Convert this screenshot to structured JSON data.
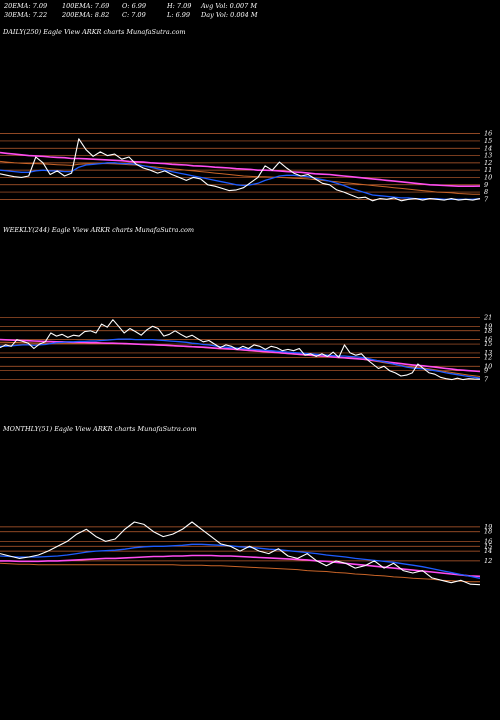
{
  "header": {
    "row1": [
      "20EMA: 7.09",
      "100EMA: 7.69",
      "O: 6.99",
      "H: 7.09",
      "Avg Vol: 0.007 M"
    ],
    "row2": [
      "30EMA: 7.22",
      "200EMA: 8.82",
      "C: 7.09",
      "L: 6.99",
      "Day Vol: 0.004 M"
    ]
  },
  "colors": {
    "price": "#ffffff",
    "ema_short": "#1e5cff",
    "ema_mid": "#ff4df0",
    "ema_long": "#c86428",
    "grid": "#c06030"
  },
  "chart_data": [
    {
      "type": "line",
      "title": "DAILY(250) Eagle   View  ARKR charts MunafaSutra.com",
      "y_ticks": [
        16,
        15,
        14,
        13,
        12,
        11,
        10,
        9,
        8,
        7
      ],
      "ylim": [
        6.5,
        16.5
      ],
      "series": [
        {
          "name": "price",
          "values": [
            10.5,
            10.3,
            10.1,
            10.0,
            10.2,
            12.8,
            12.0,
            10.4,
            10.9,
            10.2,
            10.6,
            15.3,
            13.8,
            12.9,
            13.5,
            13.0,
            13.2,
            12.5,
            12.8,
            11.8,
            11.3,
            11.0,
            10.6,
            10.9,
            10.4,
            10.0,
            9.6,
            10.0,
            9.8,
            9.0,
            8.8,
            8.5,
            8.2,
            8.3,
            8.6,
            9.3,
            10.0,
            11.6,
            11.0,
            12.1,
            11.3,
            10.6,
            10.2,
            10.4,
            9.8,
            9.2,
            9.0,
            8.3,
            8.0,
            7.6,
            7.2,
            7.3,
            6.8,
            7.1,
            7.0,
            7.2,
            6.8,
            7.0,
            7.1,
            6.9,
            7.1,
            7.0,
            6.9,
            7.1,
            6.9,
            7.0,
            6.9,
            7.1
          ]
        },
        {
          "name": "ema_short",
          "values": [
            11.0,
            10.9,
            10.8,
            10.7,
            10.7,
            10.9,
            11.0,
            10.9,
            10.9,
            10.8,
            10.8,
            11.4,
            11.7,
            11.8,
            11.9,
            12.0,
            12.0,
            11.9,
            11.9,
            11.8,
            11.6,
            11.4,
            11.2,
            11.0,
            10.8,
            10.6,
            10.4,
            10.2,
            10.0,
            9.8,
            9.6,
            9.4,
            9.2,
            9.0,
            8.9,
            9.0,
            9.2,
            9.6,
            9.9,
            10.2,
            10.3,
            10.3,
            10.2,
            10.1,
            9.9,
            9.7,
            9.5,
            9.2,
            8.9,
            8.5,
            8.2,
            7.9,
            7.6,
            7.5,
            7.4,
            7.3,
            7.2,
            7.2,
            7.1,
            7.1,
            7.1,
            7.1,
            7.0,
            7.0,
            7.0,
            7.0,
            7.0,
            7.09
          ]
        },
        {
          "name": "ema_mid",
          "values": [
            13.4,
            13.3,
            13.2,
            13.1,
            13.0,
            12.95,
            12.9,
            12.8,
            12.75,
            12.7,
            12.6,
            12.6,
            12.55,
            12.5,
            12.45,
            12.4,
            12.35,
            12.3,
            12.2,
            12.15,
            12.1,
            12.0,
            11.95,
            11.9,
            11.8,
            11.75,
            11.7,
            11.6,
            11.55,
            11.5,
            11.4,
            11.35,
            11.3,
            11.2,
            11.15,
            11.1,
            11.0,
            11.0,
            10.95,
            10.9,
            10.8,
            10.75,
            10.7,
            10.6,
            10.5,
            10.45,
            10.4,
            10.3,
            10.2,
            10.1,
            10.0,
            9.9,
            9.8,
            9.7,
            9.6,
            9.5,
            9.4,
            9.3,
            9.2,
            9.1,
            9.0,
            8.95,
            8.9,
            8.85,
            8.8,
            8.8,
            8.8,
            8.82
          ]
        },
        {
          "name": "ema_long",
          "values": [
            12.2,
            12.1,
            12.0,
            11.95,
            11.9,
            11.9,
            11.85,
            11.8,
            11.75,
            11.7,
            11.65,
            11.8,
            11.85,
            11.9,
            11.9,
            11.9,
            11.85,
            11.8,
            11.75,
            11.7,
            11.6,
            11.5,
            11.4,
            11.3,
            11.2,
            11.1,
            11.0,
            10.9,
            10.8,
            10.7,
            10.6,
            10.5,
            10.4,
            10.3,
            10.2,
            10.15,
            10.1,
            10.1,
            10.05,
            10.0,
            9.95,
            9.9,
            9.85,
            9.8,
            9.7,
            9.6,
            9.5,
            9.4,
            9.3,
            9.2,
            9.1,
            9.0,
            8.9,
            8.8,
            8.7,
            8.6,
            8.5,
            8.4,
            8.3,
            8.2,
            8.1,
            8.0,
            7.95,
            7.9,
            7.8,
            7.75,
            7.7,
            7.69
          ]
        }
      ]
    },
    {
      "type": "line",
      "title": "WEEKLY(244) Eagle   View  ARKR charts MunafaSutra.com",
      "y_ticks": [
        21,
        19,
        18,
        16,
        15,
        13,
        12,
        10,
        9,
        7
      ],
      "ylim": [
        6,
        22
      ],
      "series": [
        {
          "name": "price",
          "values": [
            14.2,
            14.8,
            14.5,
            16.0,
            15.6,
            15.2,
            14.0,
            15.0,
            15.5,
            17.5,
            16.8,
            17.2,
            16.5,
            17.0,
            16.8,
            17.8,
            18.0,
            17.5,
            19.5,
            18.8,
            20.5,
            19.0,
            17.5,
            18.5,
            17.8,
            17.0,
            18.2,
            19.0,
            18.5,
            16.8,
            17.2,
            18.0,
            17.2,
            16.5,
            17.0,
            16.2,
            15.5,
            15.8,
            15.0,
            14.2,
            14.8,
            14.5,
            13.8,
            14.5,
            14.0,
            14.8,
            14.5,
            13.8,
            14.5,
            14.2,
            13.5,
            13.8,
            13.5,
            14.0,
            12.5,
            12.8,
            12.2,
            12.8,
            12.2,
            13.2,
            12.0,
            14.8,
            13.0,
            12.5,
            12.8,
            11.5,
            10.5,
            9.5,
            10.0,
            9.0,
            8.5,
            7.8,
            8.0,
            8.5,
            10.5,
            9.5,
            8.5,
            8.2,
            7.5,
            7.2,
            7.0,
            7.3,
            7.0,
            7.2,
            7.1,
            7.09
          ]
        },
        {
          "name": "ema_short",
          "values": [
            14.5,
            14.5,
            14.6,
            14.7,
            14.8,
            14.8,
            14.7,
            14.8,
            14.9,
            15.1,
            15.3,
            15.4,
            15.5,
            15.5,
            15.6,
            15.6,
            15.7,
            15.7,
            15.8,
            15.9,
            16.0,
            16.1,
            16.1,
            16.1,
            16.0,
            16.0,
            16.0,
            16.0,
            15.9,
            15.8,
            15.7,
            15.6,
            15.5,
            15.4,
            15.2,
            15.1,
            14.9,
            14.8,
            14.6,
            14.4,
            14.3,
            14.2,
            14.1,
            14.0,
            13.9,
            13.8,
            13.7,
            13.6,
            13.5,
            13.4,
            13.3,
            13.2,
            13.1,
            13.0,
            12.9,
            12.8,
            12.7,
            12.6,
            12.5,
            12.4,
            12.3,
            12.3,
            12.2,
            12.1,
            12.0,
            11.8,
            11.5,
            11.2,
            11.0,
            10.7,
            10.4,
            10.1,
            9.8,
            9.6,
            9.5,
            9.4,
            9.2,
            9.0,
            8.8,
            8.5,
            8.3,
            8.1,
            7.9,
            7.7,
            7.5,
            7.3
          ]
        },
        {
          "name": "ema_mid",
          "values": [
            16.0,
            15.95,
            15.9,
            15.85,
            15.8,
            15.75,
            15.7,
            15.65,
            15.6,
            15.55,
            15.5,
            15.5,
            15.45,
            15.4,
            15.4,
            15.35,
            15.3,
            15.3,
            15.25,
            15.2,
            15.2,
            15.15,
            15.1,
            15.05,
            15.0,
            14.95,
            14.9,
            14.85,
            14.8,
            14.75,
            14.7,
            14.6,
            14.55,
            14.5,
            14.4,
            14.35,
            14.3,
            14.2,
            14.1,
            14.0,
            13.95,
            13.9,
            13.8,
            13.7,
            13.6,
            13.5,
            13.4,
            13.3,
            13.2,
            13.1,
            13.0,
            12.9,
            12.8,
            12.7,
            12.6,
            12.5,
            12.4,
            12.3,
            12.2,
            12.1,
            12.0,
            11.9,
            11.8,
            11.7,
            11.6,
            11.5,
            11.35,
            11.2,
            11.05,
            10.9,
            10.75,
            10.6,
            10.45,
            10.3,
            10.2,
            10.1,
            9.95,
            9.8,
            9.65,
            9.5,
            9.35,
            9.2,
            9.1,
            9.0,
            8.9,
            8.82
          ]
        },
        {
          "name": "ema_long",
          "values": [
            15.4,
            15.4,
            15.35,
            15.35,
            15.3,
            15.3,
            15.25,
            15.25,
            15.2,
            15.2,
            15.2,
            15.2,
            15.2,
            15.15,
            15.15,
            15.15,
            15.1,
            15.1,
            15.1,
            15.1,
            15.1,
            15.05,
            15.0,
            15.0,
            14.95,
            14.9,
            14.85,
            14.8,
            14.75,
            14.7,
            14.6,
            14.55,
            14.5,
            14.4,
            14.35,
            14.3,
            14.2,
            14.1,
            14.0,
            13.9,
            13.85,
            13.8,
            13.7,
            13.6,
            13.5,
            13.4,
            13.3,
            13.2,
            13.1,
            13.0,
            12.9,
            12.8,
            12.7,
            12.6,
            12.5,
            12.4,
            12.3,
            12.2,
            12.1,
            12.0,
            11.9,
            11.85,
            11.8,
            11.7,
            11.6,
            11.4,
            11.2,
            11.0,
            10.8,
            10.6,
            10.4,
            10.2,
            10.0,
            9.8,
            9.7,
            9.6,
            9.4,
            9.2,
            9.0,
            8.8,
            8.6,
            8.4,
            8.2,
            8.0,
            7.85,
            7.69
          ]
        }
      ]
    },
    {
      "type": "line",
      "title": "MONTHLY(51) Eagle   View  ARKR charts MunafaSutra.com",
      "y_ticks": [
        19,
        18,
        16,
        15,
        14,
        12
      ],
      "ylim": [
        6,
        20
      ],
      "series": [
        {
          "name": "price",
          "values": [
            13.5,
            13.0,
            12.5,
            12.8,
            13.2,
            14.0,
            15.0,
            16.0,
            17.5,
            18.5,
            17.0,
            16.0,
            16.5,
            18.5,
            20.0,
            19.5,
            18.0,
            17.0,
            17.5,
            18.5,
            20.0,
            18.5,
            17.0,
            15.5,
            15.0,
            14.0,
            15.0,
            14.0,
            13.5,
            14.5,
            13.0,
            12.5,
            13.5,
            12.0,
            11.0,
            12.0,
            11.5,
            10.5,
            11.0,
            12.0,
            10.5,
            11.5,
            10.0,
            9.5,
            10.0,
            8.5,
            8.0,
            7.5,
            8.0,
            7.2,
            7.09
          ]
        },
        {
          "name": "ema_short",
          "values": [
            13.0,
            12.9,
            12.8,
            12.8,
            12.8,
            12.9,
            13.0,
            13.2,
            13.5,
            13.8,
            14.0,
            14.1,
            14.2,
            14.4,
            14.7,
            14.9,
            15.0,
            15.0,
            15.1,
            15.2,
            15.4,
            15.4,
            15.3,
            15.2,
            15.1,
            14.9,
            14.8,
            14.6,
            14.4,
            14.3,
            14.1,
            13.9,
            13.7,
            13.5,
            13.2,
            13.0,
            12.8,
            12.5,
            12.3,
            12.1,
            11.9,
            11.7,
            11.4,
            11.1,
            10.8,
            10.4,
            10.0,
            9.6,
            9.2,
            8.8,
            8.4
          ]
        },
        {
          "name": "ema_mid",
          "values": [
            12.0,
            12.0,
            11.9,
            11.9,
            11.9,
            12.0,
            12.0,
            12.1,
            12.2,
            12.3,
            12.4,
            12.5,
            12.5,
            12.6,
            12.7,
            12.8,
            12.9,
            12.9,
            13.0,
            13.0,
            13.1,
            13.1,
            13.1,
            13.0,
            13.0,
            12.9,
            12.8,
            12.7,
            12.6,
            12.5,
            12.4,
            12.3,
            12.2,
            12.0,
            11.9,
            11.7,
            11.5,
            11.3,
            11.1,
            10.9,
            10.7,
            10.5,
            10.3,
            10.1,
            9.9,
            9.7,
            9.5,
            9.3,
            9.1,
            8.9,
            8.82
          ]
        },
        {
          "name": "ema_long",
          "values": [
            11.5,
            11.4,
            11.3,
            11.3,
            11.2,
            11.2,
            11.2,
            11.2,
            11.2,
            11.2,
            11.2,
            11.2,
            11.2,
            11.2,
            11.2,
            11.2,
            11.2,
            11.2,
            11.2,
            11.1,
            11.1,
            11.1,
            11.0,
            11.0,
            10.9,
            10.8,
            10.7,
            10.6,
            10.5,
            10.4,
            10.3,
            10.2,
            10.0,
            9.9,
            9.8,
            9.6,
            9.5,
            9.3,
            9.2,
            9.0,
            8.9,
            8.7,
            8.6,
            8.4,
            8.3,
            8.2,
            8.0,
            7.9,
            7.8,
            7.7,
            7.69
          ]
        }
      ]
    }
  ]
}
